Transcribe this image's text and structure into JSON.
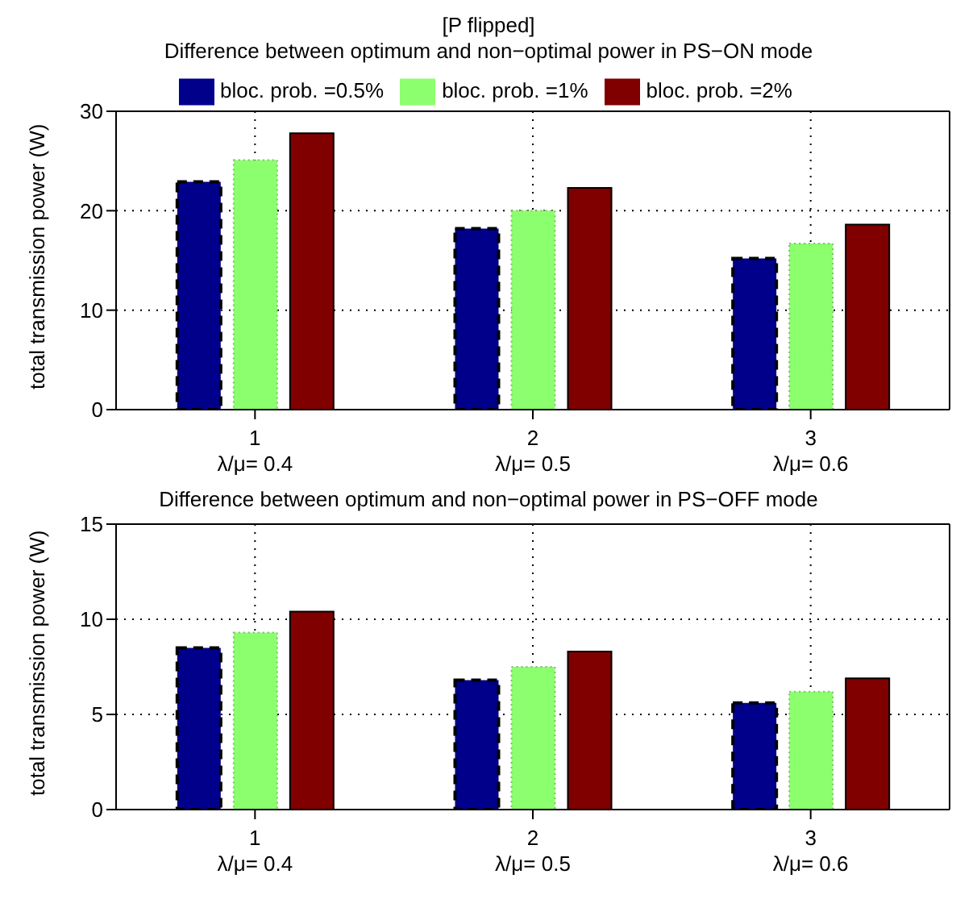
{
  "chart_data": [
    {
      "type": "bar",
      "title": "[P flipped]",
      "subtitle": "Difference between optimum and non−optimal power in PS−ON mode",
      "ylabel": "total transmission power (W)",
      "categories": [
        "1\nλ/μ= 0.4",
        "2\nλ/μ= 0.5",
        "3\nλ/μ= 0.6"
      ],
      "series": [
        {
          "name": "bloc. prob. =0.5%",
          "color": "#00008b",
          "line_style": "dashed",
          "values": [
            22.9,
            18.2,
            15.2
          ]
        },
        {
          "name": "bloc. prob. =1%",
          "color": "#8cff6e",
          "line_style": "dotted",
          "values": [
            25.1,
            20.0,
            16.7
          ]
        },
        {
          "name": "bloc. prob. =2%",
          "color": "#800000",
          "line_style": "solid",
          "values": [
            27.8,
            22.3,
            18.6
          ]
        }
      ],
      "ylim": [
        0,
        30
      ],
      "yticks": [
        0,
        10,
        20,
        30
      ],
      "grid": true,
      "legend": "top"
    },
    {
      "type": "bar",
      "subtitle": "Difference between optimum and non−optimal power in PS−OFF mode",
      "ylabel": "total transmission power (W)",
      "categories": [
        "1\nλ/μ= 0.4",
        "2\nλ/μ= 0.5",
        "3\nλ/μ= 0.6"
      ],
      "series": [
        {
          "color": "#00008b",
          "line_style": "dashed",
          "values": [
            8.5,
            6.8,
            5.6
          ]
        },
        {
          "color": "#8cff6e",
          "line_style": "dotted",
          "values": [
            9.3,
            7.5,
            6.2
          ]
        },
        {
          "color": "#800000",
          "line_style": "solid",
          "values": [
            10.4,
            8.3,
            6.9
          ]
        }
      ],
      "ylim": [
        0,
        15
      ],
      "yticks": [
        0,
        5,
        10,
        15
      ],
      "grid": true
    }
  ]
}
